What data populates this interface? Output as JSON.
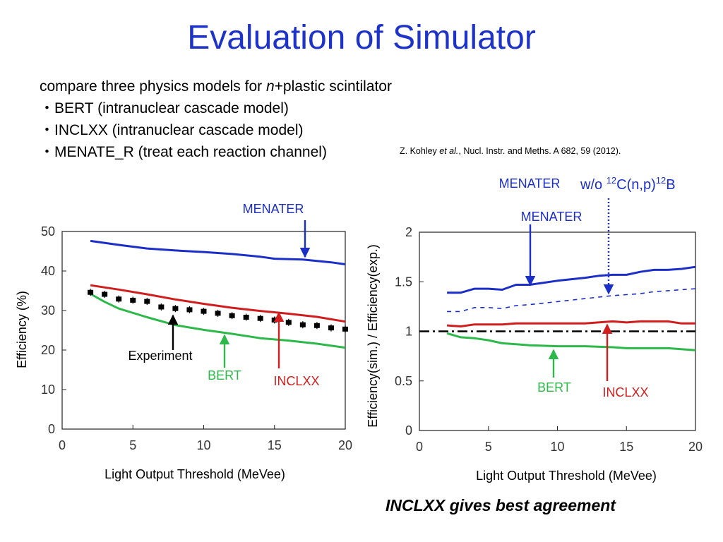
{
  "slide": {
    "title": "Evaluation of Simulator",
    "intro_prefix": "compare three physics models for ",
    "intro_italic": "n",
    "intro_suffix": "+plastic scintilator",
    "bullets": [
      "・BERT (intranuclear cascade model)",
      "・INCLXX (intranuclear cascade model)",
      "・MENATE_R (treat each reaction channel)"
    ],
    "reference_prefix": "Z. Kohley ",
    "reference_italic": "et al.",
    "reference_suffix": ", Nucl. Instr. and Meths. A 682, 59 (2012).",
    "conclusion": "INCLXX  gives best agreement"
  },
  "colors": {
    "title": "#1e33c8",
    "menater": "#1b2fc8",
    "inclxx": "#d01e1e",
    "bert": "#2db84a",
    "experiment": "#000000",
    "ratio_one": "#000000"
  },
  "chart_data": [
    {
      "type": "line",
      "xlabel": "Light Output Threshold (MeVee)",
      "ylabel": "Efficiency (%)",
      "xlim": [
        0,
        20
      ],
      "ylim": [
        0,
        50
      ],
      "xticks": [
        "0",
        "5",
        "10",
        "15",
        "20"
      ],
      "yticks": [
        "0",
        "10",
        "20",
        "30",
        "40",
        "50"
      ],
      "grid": false,
      "series": [
        {
          "name": "MENATER",
          "color": "#1b2fc8",
          "style": "line",
          "x": [
            2,
            4,
            6,
            8,
            10,
            12,
            14,
            15,
            17,
            19,
            20
          ],
          "y": [
            47.6,
            46.6,
            45.7,
            45.2,
            44.8,
            44.3,
            43.6,
            43.1,
            42.9,
            42.2,
            41.7
          ]
        },
        {
          "name": "INCLXX",
          "color": "#d01e1e",
          "style": "line",
          "x": [
            2,
            4,
            6,
            8,
            10,
            12,
            14,
            16,
            18,
            20
          ],
          "y": [
            36.4,
            35.3,
            34.1,
            32.8,
            31.7,
            30.7,
            29.9,
            29.2,
            28.4,
            27.2
          ]
        },
        {
          "name": "BERT",
          "color": "#2db84a",
          "style": "line",
          "x": [
            2,
            3,
            4,
            6,
            8,
            10,
            12,
            14,
            16,
            18,
            20
          ],
          "y": [
            34.2,
            32.2,
            30.5,
            28.3,
            26.3,
            25.1,
            24.1,
            23.0,
            22.4,
            21.6,
            20.6
          ]
        },
        {
          "name": "Experiment",
          "color": "#000000",
          "style": "points",
          "x": [
            2,
            3,
            4,
            5,
            6,
            7,
            8,
            9,
            10,
            11,
            12,
            13,
            14,
            15,
            16,
            17,
            18,
            19,
            20
          ],
          "y": [
            34.6,
            34.1,
            32.9,
            32.6,
            32.3,
            30.9,
            30.5,
            30.2,
            29.8,
            29.3,
            28.7,
            28.3,
            28.0,
            27.6,
            27.0,
            26.4,
            26.2,
            25.6,
            25.3
          ]
        }
      ],
      "annotations": [
        {
          "text": "MENATER",
          "color": "#1b2fc8",
          "points_to": [
            17.2,
            43.0
          ]
        },
        {
          "text": "Experiment",
          "color": "#000000",
          "points_to": [
            8.1,
            29.7
          ]
        },
        {
          "text": "BERT",
          "color": "#2db84a",
          "points_to": [
            11.6,
            24.0
          ]
        },
        {
          "text": "INCLXX",
          "color": "#d01e1e",
          "points_to": [
            15.4,
            29.8
          ]
        }
      ]
    },
    {
      "type": "line",
      "xlabel": "Light Output Threshold (MeVee)",
      "ylabel": "Efficiency(sim.) / Efficiency(exp.)",
      "xlim": [
        0,
        20
      ],
      "ylim": [
        0,
        2
      ],
      "xticks": [
        "0",
        "5",
        "10",
        "15",
        "20"
      ],
      "yticks": [
        "0",
        "0.5",
        "1",
        "1.5",
        "2"
      ],
      "grid": false,
      "series": [
        {
          "name": "MENATER",
          "color": "#1b2fc8",
          "style": "line",
          "x": [
            2,
            3,
            4,
            5,
            6,
            7,
            8,
            10,
            12,
            13,
            14,
            15,
            16,
            17,
            18,
            19,
            20
          ],
          "y": [
            1.39,
            1.39,
            1.43,
            1.43,
            1.42,
            1.47,
            1.47,
            1.51,
            1.54,
            1.56,
            1.57,
            1.57,
            1.6,
            1.62,
            1.62,
            1.63,
            1.65
          ]
        },
        {
          "name": "MENATER w/o 12C(n,p)12B",
          "color": "#1b2fc8",
          "style": "dashed",
          "x": [
            2,
            3,
            4,
            5,
            6,
            7,
            8,
            10,
            12,
            14,
            15,
            16,
            17,
            18,
            20
          ],
          "y": [
            1.2,
            1.2,
            1.24,
            1.24,
            1.23,
            1.26,
            1.27,
            1.3,
            1.33,
            1.36,
            1.37,
            1.38,
            1.4,
            1.41,
            1.43
          ]
        },
        {
          "name": "INCLXX",
          "color": "#d01e1e",
          "style": "line",
          "x": [
            2,
            3,
            4,
            5,
            6,
            7,
            8,
            10,
            12,
            14,
            15,
            16,
            17,
            18,
            19,
            20
          ],
          "y": [
            1.06,
            1.05,
            1.07,
            1.07,
            1.07,
            1.08,
            1.08,
            1.08,
            1.08,
            1.1,
            1.09,
            1.1,
            1.1,
            1.1,
            1.08,
            1.08
          ]
        },
        {
          "name": "BERT",
          "color": "#2db84a",
          "style": "line",
          "x": [
            2,
            3,
            4,
            5,
            6,
            7,
            8,
            10,
            12,
            14,
            15,
            16,
            18,
            20
          ],
          "y": [
            0.98,
            0.94,
            0.93,
            0.91,
            0.88,
            0.87,
            0.86,
            0.85,
            0.85,
            0.84,
            0.83,
            0.83,
            0.83,
            0.81
          ]
        },
        {
          "name": "",
          "color": "#000000",
          "style": "dashdot",
          "x": [
            0,
            20
          ],
          "y": [
            1,
            1
          ]
        }
      ],
      "annotations": [
        {
          "text": "MENATER",
          "color": "#1b2fc8",
          "points_to": [
            8.1,
            1.47
          ]
        },
        {
          "text": "MENATER",
          "color": "#1b2fc8",
          "points_to": [
            13.7,
            1.37
          ]
        },
        {
          "text": "BERT",
          "color": "#2db84a",
          "points_to": [
            9.6,
            0.86
          ]
        },
        {
          "text": "INCLXX",
          "color": "#d01e1e",
          "points_to": [
            13.7,
            1.1
          ]
        }
      ],
      "header_label_parts": [
        "w/o ",
        "12",
        "C(n,p)",
        "12",
        "B"
      ]
    }
  ]
}
